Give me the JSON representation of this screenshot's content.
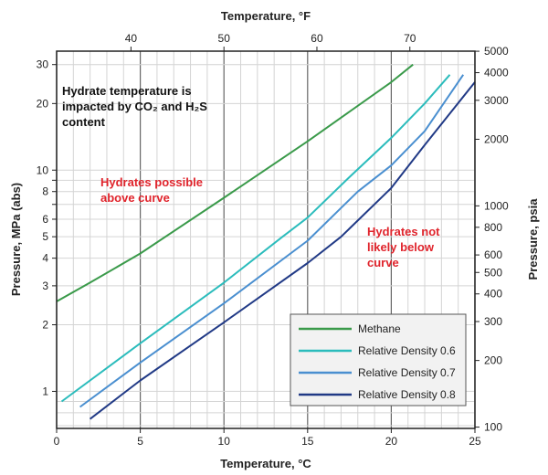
{
  "chart_data": {
    "type": "line",
    "title": "",
    "xlabel": "Temperature, °C",
    "x2label": "Temperature, °F",
    "ylabel": "Pressure, MPa (abs)",
    "y2label": "Pressure, psia",
    "xlim": [
      0,
      25
    ],
    "ylim": [
      0.68,
      34.5
    ],
    "yscale": "log",
    "grid": true,
    "x_ticks": [
      0,
      5,
      10,
      15,
      20,
      25
    ],
    "x2_ticks": [
      40,
      50,
      60,
      70
    ],
    "y_ticks": [
      1,
      2,
      3,
      4,
      5,
      6,
      8,
      10,
      20,
      30
    ],
    "y_minor_ticks": [
      7,
      9
    ],
    "y2_ticks": [
      100,
      200,
      300,
      400,
      500,
      600,
      800,
      1000,
      2000,
      3000,
      4000,
      5000
    ],
    "legend_position": "bottom-right",
    "series": [
      {
        "name": "Methane",
        "color": "#3a9a4a",
        "x": [
          0,
          2,
          5,
          10,
          15,
          20,
          21.3
        ],
        "y": [
          2.55,
          3.1,
          4.2,
          7.5,
          13.5,
          25,
          30
        ]
      },
      {
        "name": "Relative Density 0.6",
        "color": "#2bbcbc",
        "x": [
          0.3,
          5,
          10,
          13.5,
          15,
          17.5,
          20,
          22,
          23.5
        ],
        "y": [
          0.9,
          1.65,
          3.1,
          5,
          6.1,
          9.3,
          14,
          20,
          27
        ]
      },
      {
        "name": "Relative Density 0.7",
        "color": "#4a8fd0",
        "x": [
          1.4,
          5,
          10,
          15,
          18,
          20,
          22,
          24.3
        ],
        "y": [
          0.85,
          1.35,
          2.5,
          4.8,
          8,
          10.5,
          15,
          27
        ]
      },
      {
        "name": "Relative Density 0.8",
        "color": "#213a86",
        "x": [
          2,
          5,
          10,
          15,
          17,
          20,
          22,
          25
        ],
        "y": [
          0.75,
          1.12,
          2.05,
          3.8,
          5,
          8.3,
          13,
          25
        ]
      }
    ],
    "annotations": [
      {
        "lines": [
          "Hydrate temperature is",
          "impacted by CO₂ and H₂S",
          "content"
        ],
        "color": "#111111"
      },
      {
        "lines": [
          "Hydrates possible",
          "above curve"
        ],
        "color": "#e0242c"
      },
      {
        "lines": [
          "Hydrates not",
          "likely below",
          "curve"
        ],
        "color": "#e0242c"
      }
    ]
  }
}
